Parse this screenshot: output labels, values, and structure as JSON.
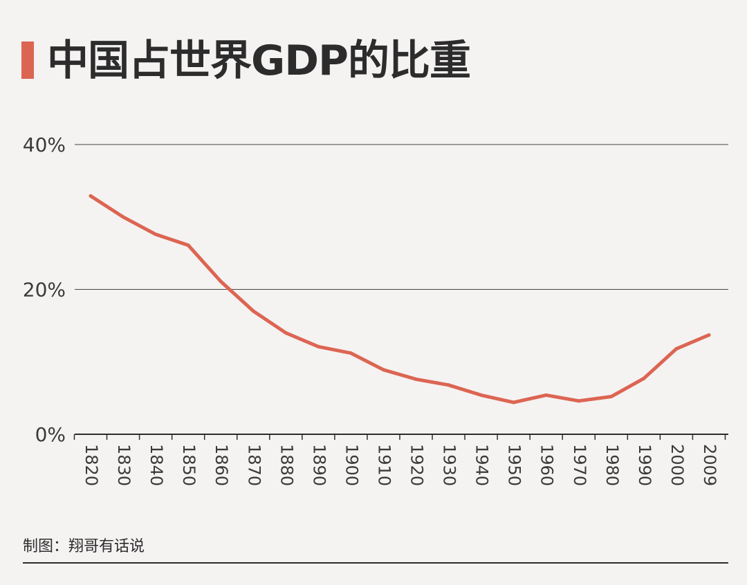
{
  "accent_color": "#dc6552",
  "header": {
    "title": "中国占世界GDP的比重"
  },
  "footer": {
    "credit": "制图：翔哥有话说"
  },
  "chart_data": {
    "type": "line",
    "title": "中国占世界GDP的比重",
    "xlabel": "",
    "ylabel": "",
    "ylim": [
      0,
      40
    ],
    "yticks": [
      0,
      20,
      40
    ],
    "ytick_labels": [
      "0%",
      "20%",
      "40%"
    ],
    "grid": true,
    "categories": [
      "1820",
      "1830",
      "1840",
      "1850",
      "1860",
      "1870",
      "1880",
      "1890",
      "1900",
      "1910",
      "1920",
      "1930",
      "1940",
      "1950",
      "1960",
      "1970",
      "1980",
      "1990",
      "2000",
      "2009"
    ],
    "series": [
      {
        "values": [
          32.9,
          30.0,
          27.6,
          26.1,
          21.1,
          17.0,
          14.0,
          12.1,
          11.2,
          8.9,
          7.6,
          6.8,
          5.4,
          4.4,
          5.4,
          4.6,
          5.2,
          7.7,
          11.8,
          13.7
        ]
      }
    ]
  }
}
